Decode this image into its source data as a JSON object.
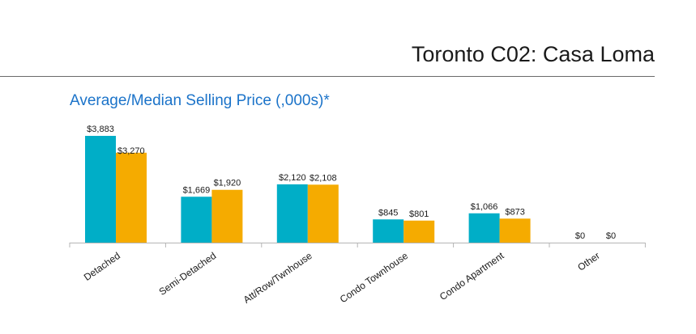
{
  "page": {
    "heading": "Toronto C02: Casa Loma"
  },
  "colors": {
    "average": "#00aec7",
    "median": "#f5ab00",
    "axis": "#b5b5b5",
    "title": "#1b73c9"
  },
  "chart_data": {
    "type": "bar",
    "title": "Average/Median Selling Price (,000s)*",
    "xlabel": "",
    "ylabel": "",
    "ylim": [
      0,
      3883
    ],
    "grid": false,
    "legend": "none",
    "categories": [
      "Detached",
      "Semi-Detached",
      "Att/Row/Twnhouse",
      "Condo Townhouse",
      "Condo Apartment",
      "Other"
    ],
    "series": [
      {
        "values": [
          3883,
          1669,
          2120,
          845,
          1066,
          0
        ],
        "labels": [
          "$3,883",
          "$1,669",
          "$2,120",
          "$845",
          "$1,066",
          "$0"
        ]
      },
      {
        "values": [
          3270,
          1920,
          2108,
          801,
          873,
          0
        ],
        "labels": [
          "$3,270",
          "$1,920",
          "$2,108",
          "$801",
          "$873",
          "$0"
        ]
      }
    ]
  }
}
